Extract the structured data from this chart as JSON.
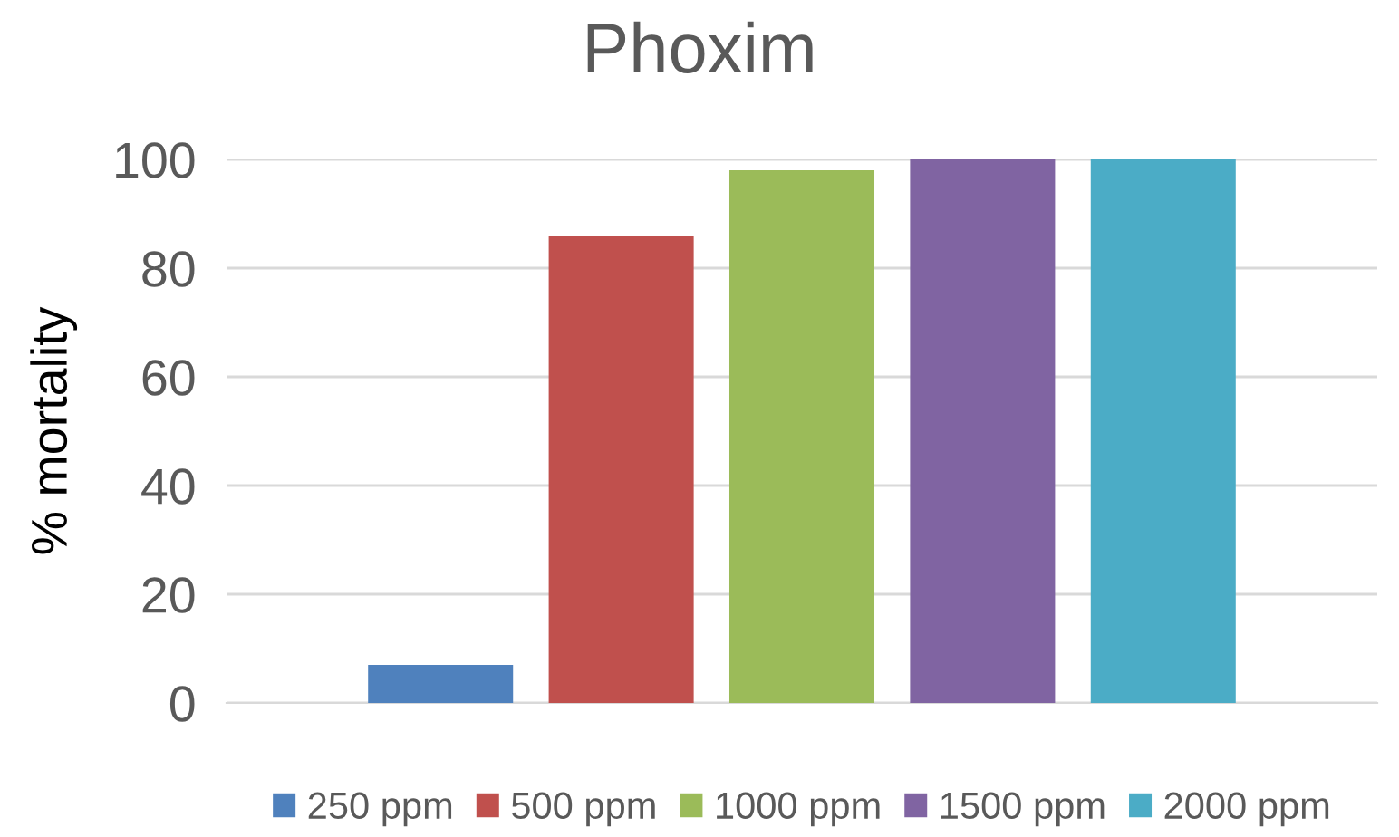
{
  "chart_data": {
    "type": "bar",
    "title": "Phoxim",
    "ylabel": "% mortality",
    "categories": [
      null
    ],
    "series": [
      {
        "name": "250 ppm",
        "color": "#4f81bd",
        "values": [
          7
        ]
      },
      {
        "name": "500 ppm",
        "color": "#c0504d",
        "values": [
          86
        ]
      },
      {
        "name": "1000 ppm",
        "color": "#9bbb59",
        "values": [
          98
        ]
      },
      {
        "name": "1500 ppm",
        "color": "#8064a2",
        "values": [
          100
        ]
      },
      {
        "name": "2000 ppm",
        "color": "#4bacc6",
        "values": [
          100
        ]
      }
    ],
    "ylim": [
      0,
      100
    ],
    "yticks": [
      0,
      20,
      40,
      60,
      80,
      100
    ],
    "grid": "y",
    "legend": "bottom"
  }
}
